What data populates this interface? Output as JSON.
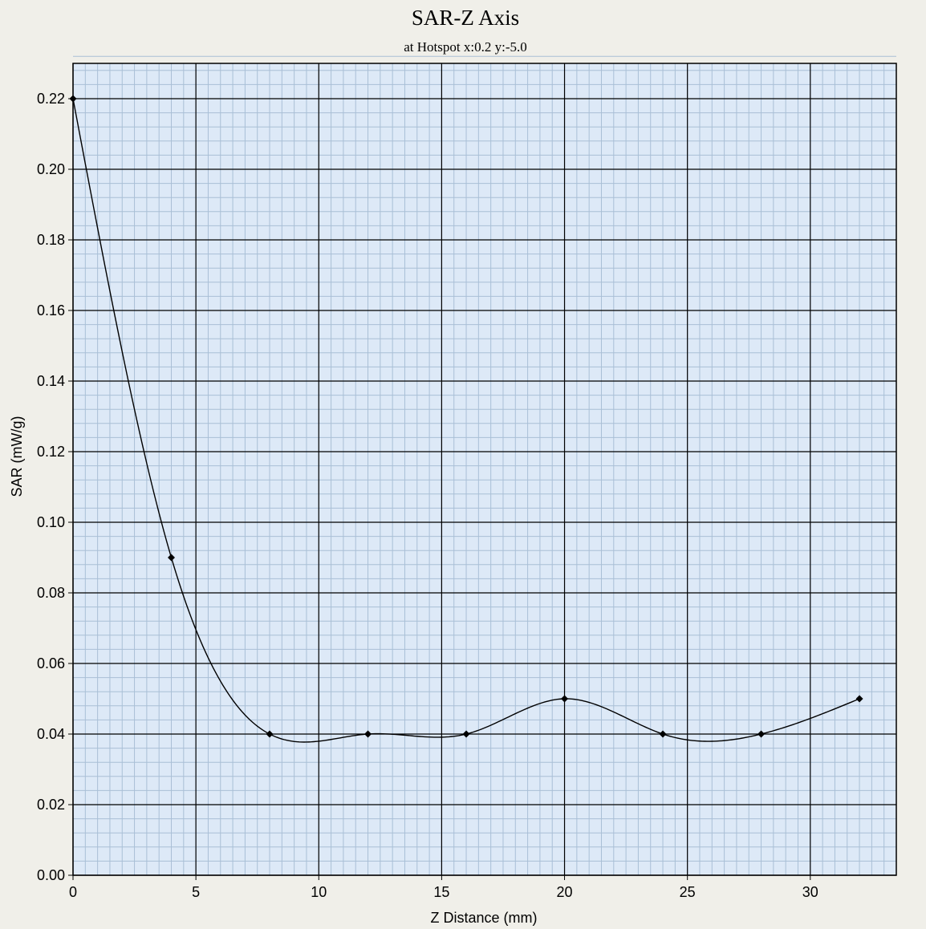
{
  "chart_data": {
    "type": "line",
    "title": "SAR-Z Axis",
    "subtitle": "at Hotspot x:0.2 y:-5.0",
    "xlabel": "Z Distance (mm)",
    "ylabel": "SAR (mW/g)",
    "xlim": [
      0,
      33.5
    ],
    "ylim": [
      0,
      0.23
    ],
    "x_ticks": [
      0,
      5,
      10,
      15,
      20,
      25,
      30
    ],
    "x_tick_labels": [
      "0",
      "5",
      "10",
      "15",
      "20",
      "25",
      "30"
    ],
    "y_ticks": [
      0,
      0.02,
      0.04,
      0.06,
      0.08,
      0.1,
      0.12,
      0.14,
      0.16,
      0.18,
      0.2,
      0.22
    ],
    "y_tick_labels": [
      "0.00",
      "0.02",
      "0.04",
      "0.06",
      "0.08",
      "0.10",
      "0.12",
      "0.14",
      "0.16",
      "0.18",
      "0.20",
      "0.22"
    ],
    "grid": true,
    "series": [
      {
        "x": [
          0,
          4,
          8,
          12,
          16,
          20,
          24,
          28,
          32
        ],
        "values": [
          0.22,
          0.09,
          0.04,
          0.04,
          0.04,
          0.05,
          0.04,
          0.04,
          0.05
        ]
      }
    ],
    "colors": {
      "plot_background": "#dde9f7",
      "minor_grid": "#a9bfd6",
      "major_grid": "#000000",
      "line": "#000000",
      "marker": "#000000",
      "page_background": "#f0efe9"
    }
  }
}
